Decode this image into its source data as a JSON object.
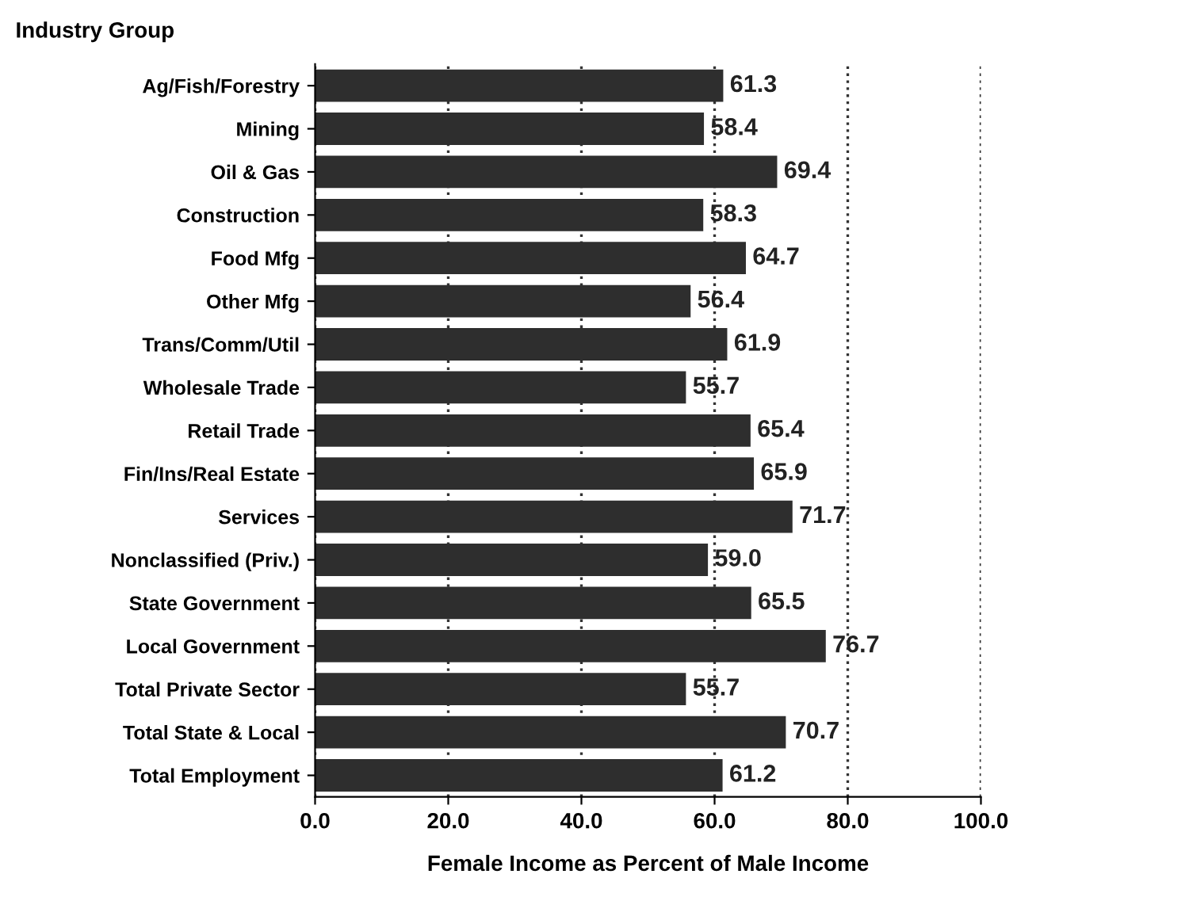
{
  "chart_data": {
    "type": "bar",
    "orientation": "horizontal",
    "ylabel": "Industry Group",
    "xlabel": "Female Income as Percent of Male Income",
    "categories": [
      "Ag/Fish/Forestry",
      "Mining",
      "Oil & Gas",
      "Construction",
      "Food Mfg",
      "Other Mfg",
      "Trans/Comm/Util",
      "Wholesale Trade",
      "Retail Trade",
      "Fin/Ins/Real Estate",
      "Services",
      "Nonclassified (Priv.)",
      "State Government",
      "Local Government",
      "Total Private Sector",
      "Total State & Local",
      "Total Employment"
    ],
    "values": [
      61.3,
      58.4,
      69.4,
      58.3,
      64.7,
      56.4,
      61.9,
      55.7,
      65.4,
      65.9,
      71.7,
      59.0,
      65.5,
      76.7,
      55.7,
      70.7,
      61.2
    ],
    "value_labels": [
      "61.3",
      "58.4",
      "69.4",
      "58.3",
      "64.7",
      "56.4",
      "61.9",
      "55.7",
      "65.4",
      "65.9",
      "71.7",
      "59.0",
      "65.5",
      "76.7",
      "55.7",
      "70.7",
      "61.2"
    ],
    "color": "#2e2e2e",
    "xlim": [
      0,
      100
    ],
    "xticks": [
      {
        "value": 0,
        "label": "0.0"
      },
      {
        "value": 20,
        "label": "20.0"
      },
      {
        "value": 40,
        "label": "40.0"
      },
      {
        "value": 60,
        "label": "60.0"
      },
      {
        "value": 80,
        "label": "80.0"
      },
      {
        "value": 100,
        "label": "100.0"
      }
    ],
    "grid": "x"
  }
}
